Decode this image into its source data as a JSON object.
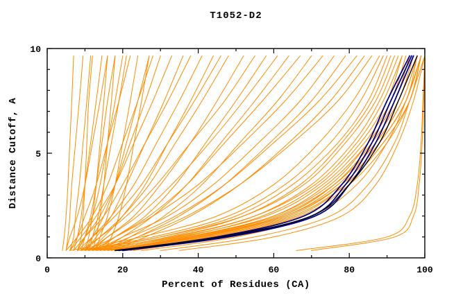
{
  "title": "T1052-D2",
  "colors": {
    "model_curve": "#ff8c00",
    "highlight_curve": "#000080",
    "reference_curve": "#000000",
    "frame": "#000000",
    "background": "#ffffff"
  },
  "chart_data": {
    "type": "line",
    "title": "T1052-D2",
    "xlabel": "Percent of Residues (CA)",
    "ylabel": "Distance Cutoff, A",
    "xlim": [
      0,
      100
    ],
    "ylim": [
      0,
      10
    ],
    "xticks_major": [
      0,
      20,
      40,
      60,
      80,
      100
    ],
    "xticks_minor": [
      10,
      30,
      50,
      70,
      90
    ],
    "yticks_major": [
      0,
      5,
      10
    ],
    "yticks_minor": [
      1,
      2,
      3,
      4,
      6,
      7,
      8,
      9
    ],
    "grid": false,
    "legend": "none",
    "anchor_cutoffs": [
      0.35,
      1,
      2,
      3.5,
      5.5,
      7.5,
      9.65
    ],
    "series": [
      {
        "color": "orange",
        "percents": [
          4,
          4.5,
          5,
          5.5,
          6,
          6.5,
          7
        ]
      },
      {
        "color": "orange",
        "percents": [
          5,
          5.5,
          6,
          6.5,
          7.5,
          8.5,
          9.5
        ]
      },
      {
        "color": "orange",
        "percents": [
          6,
          7,
          7.5,
          8.5,
          9.5,
          10.5,
          11.5
        ]
      },
      {
        "color": "orange",
        "percents": [
          8,
          9,
          9.5,
          10,
          10.5,
          11,
          12
        ]
      },
      {
        "color": "orange",
        "percents": [
          10,
          11,
          12,
          13,
          14,
          15,
          16
        ]
      },
      {
        "color": "orange",
        "percents": [
          12,
          13,
          14,
          15,
          16,
          17,
          18
        ]
      },
      {
        "color": "orange",
        "percents": [
          7,
          8,
          9,
          10,
          11.5,
          13,
          14.5
        ]
      },
      {
        "color": "orange",
        "percents": [
          9,
          10,
          11.5,
          13,
          14.5,
          16,
          18
        ]
      },
      {
        "color": "orange",
        "percents": [
          11,
          12,
          13.5,
          15,
          17,
          19,
          21
        ]
      },
      {
        "color": "orange",
        "percents": [
          13,
          14,
          16,
          18,
          20,
          22,
          24
        ]
      },
      {
        "color": "orange",
        "percents": [
          5,
          6,
          8,
          10,
          12,
          14,
          16
        ]
      },
      {
        "color": "orange",
        "percents": [
          8,
          10,
          12,
          14,
          16,
          18,
          20
        ]
      },
      {
        "color": "orange",
        "percents": [
          15,
          17,
          19,
          21,
          23,
          25,
          27
        ]
      },
      {
        "color": "orange",
        "percents": [
          6,
          8,
          10,
          13,
          16,
          19,
          22
        ]
      },
      {
        "color": "orange",
        "percents": [
          10,
          12,
          15,
          18,
          21,
          24,
          27
        ]
      },
      {
        "color": "orange",
        "percents": [
          5,
          8,
          12,
          16,
          20,
          24,
          28
        ]
      },
      {
        "color": "orange",
        "percents": [
          8,
          10,
          14,
          18,
          22,
          26,
          30
        ]
      },
      {
        "color": "orange",
        "percents": [
          6,
          9,
          13,
          18,
          23,
          28,
          33
        ]
      },
      {
        "color": "orange",
        "percents": [
          10,
          13,
          17,
          21,
          26,
          31,
          36
        ]
      },
      {
        "color": "orange",
        "percents": [
          7,
          10,
          15,
          20,
          26,
          32,
          38
        ]
      },
      {
        "color": "orange",
        "percents": [
          9,
          12,
          17,
          23,
          29,
          35,
          41
        ]
      },
      {
        "color": "orange",
        "percents": [
          11,
          15,
          20,
          26,
          32,
          38,
          44
        ]
      },
      {
        "color": "orange",
        "percents": [
          8,
          12,
          18,
          25,
          32,
          39,
          46
        ]
      },
      {
        "color": "orange",
        "percents": [
          10,
          14,
          20,
          27,
          34,
          41,
          48
        ]
      },
      {
        "color": "orange",
        "percents": [
          12,
          16,
          23,
          30,
          38,
          45,
          52
        ]
      },
      {
        "color": "orange",
        "percents": [
          9,
          14,
          21,
          29,
          38,
          47,
          55
        ]
      },
      {
        "color": "orange",
        "percents": [
          13,
          18,
          26,
          34,
          42,
          50,
          58
        ]
      },
      {
        "color": "orange",
        "percents": [
          11,
          16,
          24,
          33,
          43,
          52,
          61
        ]
      },
      {
        "color": "orange",
        "percents": [
          14,
          20,
          28,
          37,
          46,
          55,
          64
        ]
      },
      {
        "color": "orange",
        "percents": [
          12,
          18,
          27,
          37,
          47,
          57,
          67
        ]
      },
      {
        "color": "orange",
        "percents": [
          15,
          22,
          31,
          41,
          51,
          61,
          70
        ]
      },
      {
        "color": "orange",
        "percents": [
          10,
          18,
          28,
          40,
          52,
          63,
          73
        ]
      },
      {
        "color": "orange",
        "percents": [
          13,
          20,
          32,
          44,
          56,
          67,
          76
        ]
      },
      {
        "color": "orange",
        "percents": [
          16,
          24,
          35,
          47,
          59,
          70,
          79
        ]
      },
      {
        "color": "orange",
        "percents": [
          12,
          22,
          34,
          47,
          60,
          72,
          82
        ]
      },
      {
        "color": "orange",
        "percents": [
          17,
          26,
          38,
          51,
          64,
          75,
          84
        ]
      },
      {
        "color": "orange",
        "percents": [
          14,
          24,
          37,
          51,
          65,
          77,
          86
        ]
      },
      {
        "color": "orange",
        "percents": [
          6,
          25,
          45,
          60,
          72,
          81,
          88
        ]
      },
      {
        "color": "orange",
        "percents": [
          8,
          28,
          48,
          63,
          75,
          83,
          89
        ]
      },
      {
        "color": "orange",
        "percents": [
          10,
          30,
          50,
          65,
          77,
          85,
          90
        ]
      },
      {
        "color": "orange",
        "percents": [
          12,
          32,
          52,
          67,
          78,
          86,
          91
        ]
      },
      {
        "color": "orange",
        "percents": [
          9,
          30,
          52,
          68,
          79,
          87,
          92
        ]
      },
      {
        "color": "orange",
        "percents": [
          14,
          34,
          55,
          70,
          81,
          88,
          93
        ]
      },
      {
        "color": "orange",
        "percents": [
          11,
          33,
          55,
          71,
          82,
          89,
          94
        ]
      },
      {
        "color": "orange",
        "percents": [
          16,
          36,
          57,
          72,
          83,
          90,
          94
        ]
      },
      {
        "color": "orange",
        "percents": [
          13,
          35,
          58,
          73,
          84,
          91,
          95
        ]
      },
      {
        "color": "orange",
        "percents": [
          18,
          38,
          60,
          74,
          85,
          92,
          96
        ]
      },
      {
        "color": "orange",
        "percents": [
          15,
          37,
          60,
          75,
          85,
          92,
          96
        ]
      },
      {
        "color": "orange",
        "percents": [
          20,
          40,
          62,
          76,
          86,
          93,
          97
        ]
      },
      {
        "color": "orange",
        "percents": [
          17,
          39,
          62,
          76,
          86,
          93,
          97
        ]
      },
      {
        "color": "orange",
        "percents": [
          19,
          41,
          63,
          77,
          87,
          94,
          98
        ]
      },
      {
        "color": "orange",
        "percents": [
          16,
          38,
          61,
          76,
          87,
          94,
          98
        ]
      },
      {
        "color": "orange",
        "percents": [
          21,
          42,
          64,
          78,
          88,
          95,
          98
        ]
      },
      {
        "color": "orange",
        "percents": [
          18,
          40,
          63,
          78,
          88,
          95,
          99
        ]
      },
      {
        "color": "orange",
        "percents": [
          22,
          44,
          66,
          79,
          89,
          96,
          99
        ]
      },
      {
        "color": "orange",
        "percents": [
          20,
          43,
          65,
          79,
          89,
          96,
          99
        ]
      },
      {
        "color": "orange",
        "percents": [
          23,
          45,
          67,
          80,
          90,
          96,
          99
        ]
      },
      {
        "color": "orange",
        "percents": [
          25,
          50,
          70,
          82,
          90,
          95,
          99
        ]
      },
      {
        "color": "orange",
        "percents": [
          30,
          55,
          75,
          85,
          92,
          96,
          100
        ]
      },
      {
        "color": "orange",
        "percents": [
          35,
          60,
          78,
          87,
          93,
          97,
          100
        ]
      },
      {
        "color": "orange",
        "percents": [
          66,
          90,
          96,
          98,
          99,
          99.5,
          100
        ]
      },
      {
        "color": "orange",
        "percents": [
          70,
          92,
          97,
          98.5,
          99.3,
          99.7,
          100
        ]
      },
      {
        "color": "navy",
        "percents": [
          18,
          45,
          68,
          78,
          85,
          90,
          96
        ]
      },
      {
        "color": "navy",
        "percents": [
          19,
          47,
          70,
          79,
          86,
          91,
          96.5
        ]
      },
      {
        "color": "navy",
        "percents": [
          20,
          48,
          71,
          80,
          87,
          92,
          97
        ]
      },
      {
        "color": "black",
        "percents": [
          18,
          46,
          70,
          80,
          88,
          93,
          98
        ]
      }
    ]
  }
}
